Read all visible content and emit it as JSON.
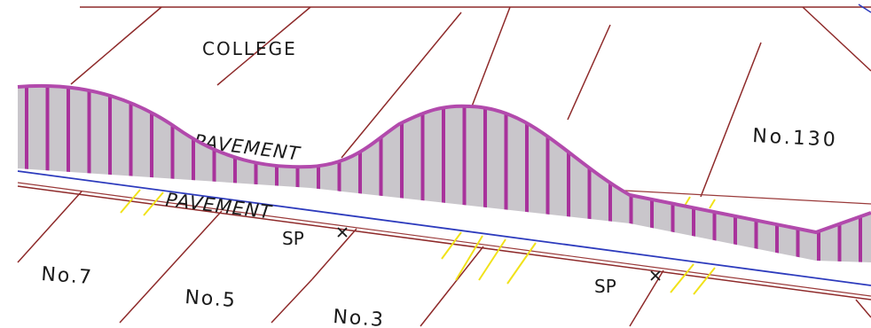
{
  "labels": {
    "college": "COLLEGE",
    "pavement_upper": "PAVEMENT",
    "pavement_lower": "PAVEMENT",
    "no130": "No.130",
    "sp_left": "SP",
    "sp_right": "SP",
    "no7": "No.7",
    "no5": "No.5",
    "no3": "No.3"
  },
  "colors": {
    "profile_outline": "#b24aac",
    "profile_hatch": "#a8329b",
    "profile_fill": "#c9c6cb",
    "parcel_lines": "#8e2a2a",
    "centerline": "#2d3bbd",
    "tick_marks": "#f1e21a",
    "text": "#1a1a1a"
  },
  "icons": {
    "survey_point": "cross-mark-icon"
  }
}
